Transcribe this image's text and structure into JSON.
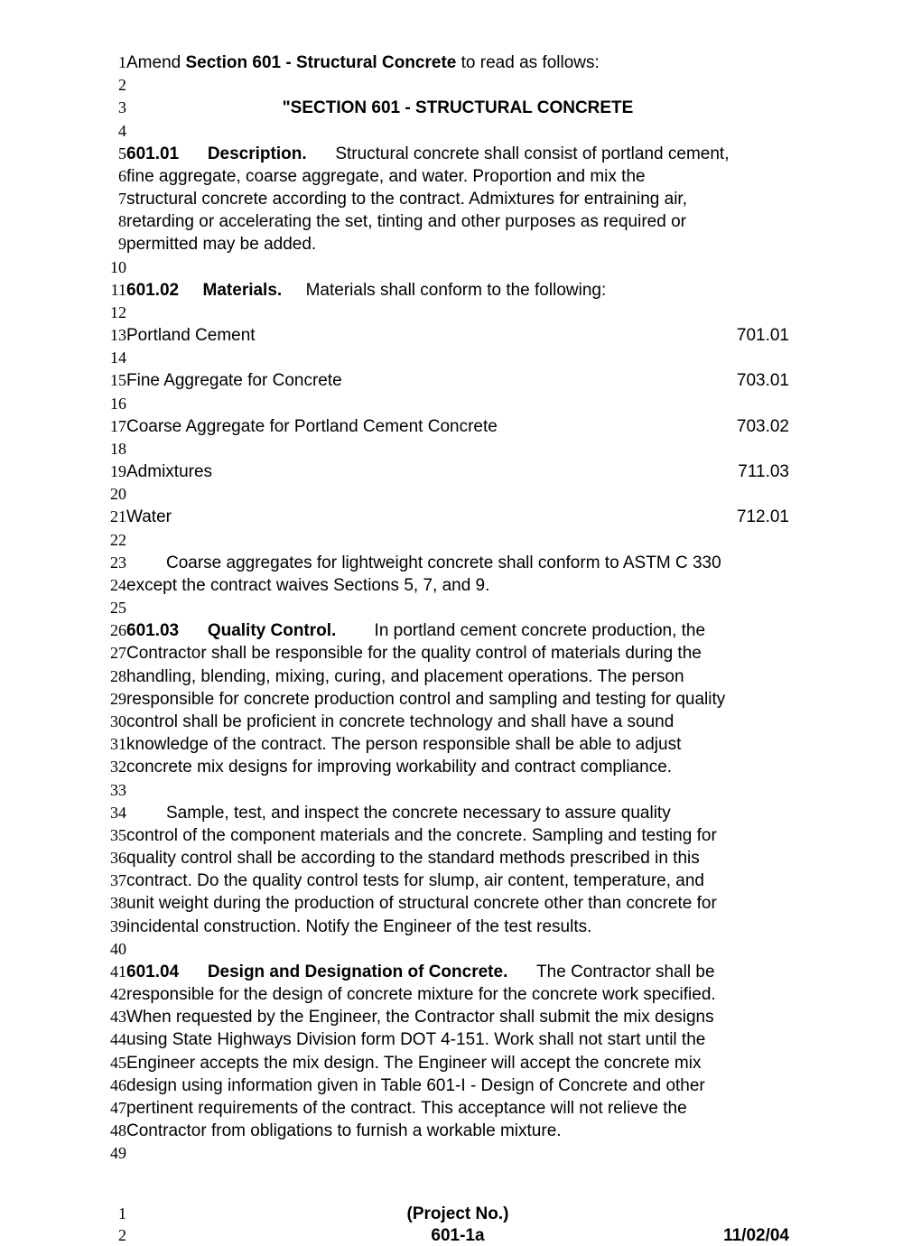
{
  "opening": {
    "prefix": "Amend ",
    "bold": "Section 601 - Structural Concrete",
    "suffix": " to read as follows:"
  },
  "title": "\"SECTION 601 - STRUCTURAL CONCRETE",
  "s601_01": {
    "num": "601.01",
    "head": "Description.",
    "l1": "Structural  concrete  shall  consist  of  portland  cement,",
    "l2": "fine  aggregate,    coarse  aggregate,    and  water.        Proportion  and  mix  the",
    "l3": "structural  concrete  according  to  the  contract.       Admixtures  for  entraining  air,",
    "l4": "retarding  or  accelerating  the  set,    tinting  and  other  purposes  as  required  or",
    "l5": "permitted may be added."
  },
  "s601_02": {
    "num": "601.02",
    "head": "Materials.",
    "tail": "Materials shall conform to the following:"
  },
  "materials": [
    {
      "label": "Portland Cement",
      "ref": "701.01"
    },
    {
      "label": "Fine Aggregate for Concrete",
      "ref": "703.01"
    },
    {
      "label": "Coarse Aggregate for Portland Cement Concrete",
      "ref": "703.02"
    },
    {
      "label": "Admixtures",
      "ref": "711.03"
    },
    {
      "label": "Water",
      "ref": "712.01"
    }
  ],
  "coarse": {
    "l1": "Coarse aggregates for lightweight concrete shall conform to ASTM C 330",
    "l2": "except the contract waives Sections 5,  7,  and 9."
  },
  "s601_03": {
    "num": "601.03",
    "head": "Quality  Control.",
    "l1": "In  portland  cement  concrete  production,    the",
    "l2": "Contractor  shall  be  responsible  for  the  quality  control  of  materials  during  the",
    "l3": "handling,   blending,   mixing,   curing,   and  placement  operations.       The  person",
    "l4": "responsible for concrete production control and sampling and testing for quality",
    "l5": "control   shall   be   proficient   in   concrete   technology   and   shall   have   a   sound",
    "l6": "knowledge  of  the  contract.       The  person  responsible  shall  be  able  to  adjust",
    "l7": "concrete mix designs for improving workability and contract compliance."
  },
  "samplepara": {
    "l1": "Sample,    test,    and  inspect  the  concrete  necessary  to  assure  quality",
    "l2": "control of the component materials and the concrete.      Sampling and testing for",
    "l3": "quality  control  shall  be  according  to  the  standard  methods  prescribed  in  this",
    "l4": "contract.      Do the quality control tests for slump,  air content,  temperature,  and",
    "l5": "unit weight during the production of structural concrete other than concrete for",
    "l6": "incidental construction. Notify the Engineer of the test results."
  },
  "s601_04": {
    "num": "601.04",
    "head": "Design and Designation of Concrete.",
    "l1": "The  Contractor  shall  be",
    "l2": "responsible  for  the  design  of  concrete  mixture  for  the   concrete  work  specified.",
    "l3": "When requested by the Engineer,  the Contractor shall submit the mix designs",
    "l4": "using State Highways Division form DOT 4-151.      Work shall not start until the",
    "l5": "Engineer  accepts  the  mix  design.      The  Engineer  will  accept  the   concrete  mix",
    "l6": "design  using  information  given  in  Table  601-I  -  Design  of  Concrete  and   other",
    "l7": "pertinent  requirements  of  the  contract.        This  acceptance  will  not  relieve  the",
    "l8": "Contractor from obligations to furnish a workable mixture."
  },
  "footer": {
    "project": "(Project No.)",
    "pg": "601-1a",
    "date": "11/02/04"
  },
  "nums": {
    "n1": "1",
    "n2": "2",
    "n3": "3",
    "n4": "4",
    "n5": "5",
    "n6": "6",
    "n7": "7",
    "n8": "8",
    "n9": "9",
    "n10": "10",
    "n11": "11",
    "n12": "12",
    "n13": "13",
    "n14": "14",
    "n15": "15",
    "n16": "16",
    "n17": "17",
    "n18": "18",
    "n19": "19",
    "n20": "20",
    "n21": "21",
    "n22": "22",
    "n23": "23",
    "n24": "24",
    "n25": "25",
    "n26": "26",
    "n27": "27",
    "n28": "28",
    "n29": "29",
    "n30": "30",
    "n31": "31",
    "n32": "32",
    "n33": "33",
    "n34": "34",
    "n35": "35",
    "n36": "36",
    "n37": "37",
    "n38": "38",
    "n39": "39",
    "n40": "40",
    "n41": "41",
    "n42": "42",
    "n43": "43",
    "n44": "44",
    "n45": "45",
    "n46": "46",
    "n47": "47",
    "n48": "48",
    "n49": "49",
    "f1": "1",
    "f2": "2"
  }
}
